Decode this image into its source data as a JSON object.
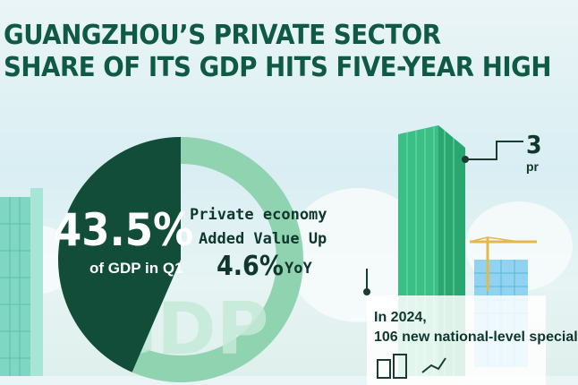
{
  "header": {
    "title_line1": "GUANGZHOU’S PRIVATE SECTOR",
    "title_line2": "SHARE OF ITS GDP HITS FIVE-YEAR HIGH"
  },
  "pie": {
    "percent": "43.5%",
    "caption": "of GDP in Q1",
    "watermark": "GDP",
    "share_fraction": 0.435
  },
  "growth": {
    "line1": "Private economy",
    "line2": "Added Value Up",
    "value": "4.6%",
    "suffix": "YoY"
  },
  "callout": {
    "value_start": "3",
    "label_start": "pr"
  },
  "bottom": {
    "year": "In 2024,",
    "text": "106 new national-level special"
  },
  "colors": {
    "title": "#0f5a45",
    "pie_dark": "#124d3a",
    "pie_light": "#8fd3b1",
    "tower": "#3cbf86"
  }
}
